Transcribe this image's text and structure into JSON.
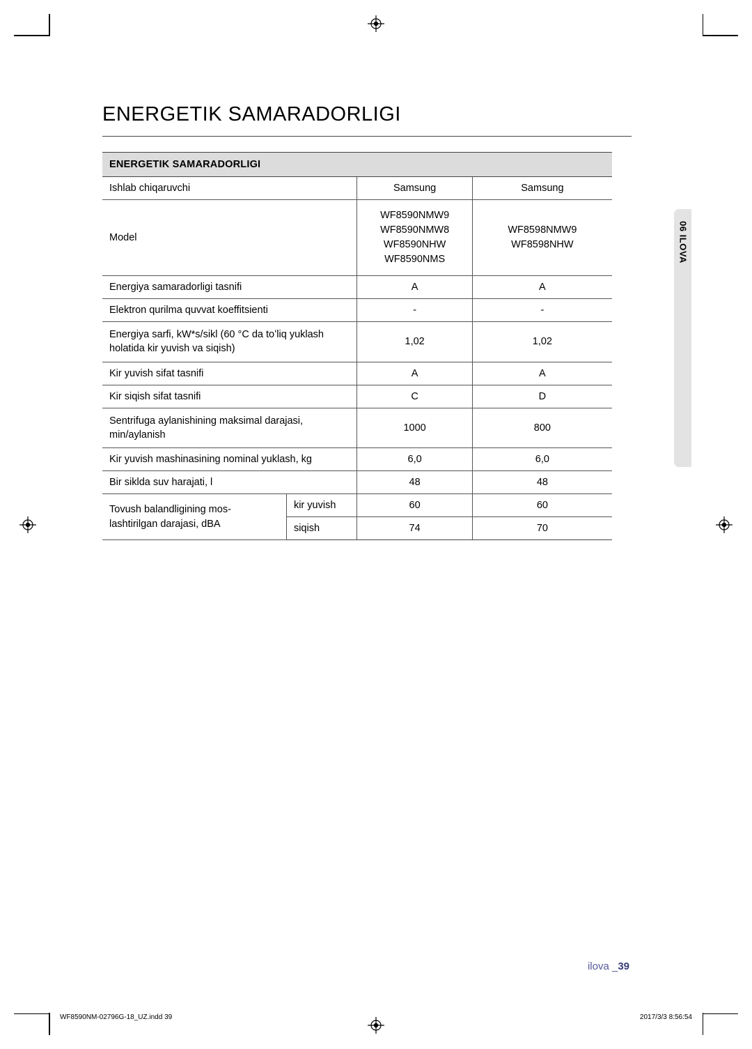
{
  "title": "ENERGETIK SAMARADORLIGI",
  "table": {
    "caption": "ENERGETIK SAMARADORLIGI",
    "rows": [
      {
        "label": "Ishlab chiqaruvchi",
        "sub": "",
        "v1": "Samsung",
        "v2": "Samsung"
      },
      {
        "label": "Model",
        "sub": "",
        "v1": "WF8590NMW9\nWF8590NMW8\nWF8590NHW\nWF8590NMS",
        "v2": "WF8598NMW9\nWF8598NHW",
        "tall": true
      },
      {
        "label": "Energiya samaradorligi tasnifi",
        "sub": "",
        "v1": "A",
        "v2": "A"
      },
      {
        "label": "Elektron qurilma quvvat koeffitsienti",
        "sub": "",
        "v1": "-",
        "v2": "-"
      },
      {
        "label": "Energiya sarfi, kW*s/sikl (60 °C da toʻliq yuklash holatida kir yuvish va siqish)",
        "sub": "",
        "v1": "1,02",
        "v2": "1,02",
        "tall2": true
      },
      {
        "label": "Kir yuvish sifat tasnifi",
        "sub": "",
        "v1": "A",
        "v2": "A"
      },
      {
        "label": "Kir siqish sifat tasnifi",
        "sub": "",
        "v1": "C",
        "v2": "D"
      },
      {
        "label": "Sentrifuga aylanishining maksimal darajasi, min/aylanish",
        "sub": "",
        "v1": "1000",
        "v2": "800",
        "tall2": true
      },
      {
        "label": "Kir yuvish mashinasining nominal yuklash, kg",
        "sub": "",
        "v1": "6,0",
        "v2": "6,0"
      },
      {
        "label": "Bir siklda suv harajati, l",
        "sub": "",
        "v1": "48",
        "v2": "48"
      }
    ],
    "soundLabel": "Tovush balandligining mos-lashtirilgan darajasi, dBA",
    "soundRows": [
      {
        "sub": "kir yuvish",
        "v1": "60",
        "v2": "60"
      },
      {
        "sub": "siqish",
        "v1": "74",
        "v2": "70"
      }
    ]
  },
  "sideTab": "06  ILOVA",
  "footer": {
    "word": "ilova _",
    "page": "39"
  },
  "imprint": {
    "file": "WF8590NM-02796G-18_UZ.indd   39",
    "stamp": "2017/3/3   8:56:54"
  }
}
